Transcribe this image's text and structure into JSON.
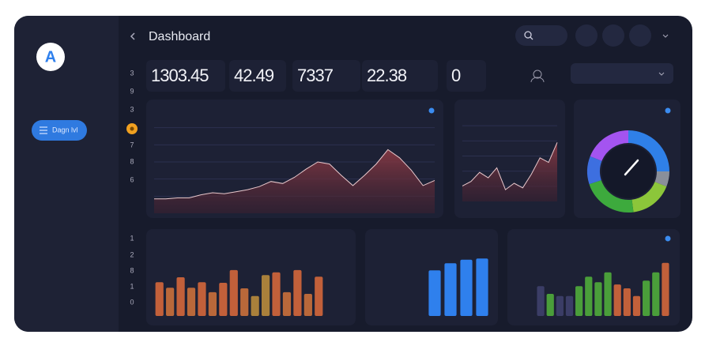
{
  "sidebar": {
    "logo": "A",
    "button": "Dagn lvl"
  },
  "header": {
    "title": "Dashboard"
  },
  "stats": [
    "1303.45",
    "42.49",
    "7337",
    "22.38",
    "0"
  ],
  "side_numbers_top": [
    "3",
    "9",
    "3",
    "7",
    "8",
    "6"
  ],
  "side_numbers_bottom": [
    "1",
    "2",
    "8",
    "1",
    "0"
  ],
  "chart_data": [
    {
      "type": "area",
      "color": "#8a3a44",
      "ylim": [
        0,
        100
      ],
      "grid": true,
      "values": [
        14,
        14,
        15,
        15,
        18,
        20,
        19,
        21,
        23,
        26,
        31,
        29,
        35,
        43,
        50,
        48,
        37,
        27,
        37,
        48,
        62,
        54,
        42,
        27,
        32
      ]
    },
    {
      "type": "area",
      "color": "#8a3a44",
      "ylim": [
        0,
        100
      ],
      "grid": true,
      "values": [
        17,
        22,
        32,
        26,
        37,
        13,
        20,
        15,
        30,
        48,
        43,
        65
      ]
    },
    {
      "type": "pie",
      "values": [
        25,
        6,
        17,
        22,
        11,
        19
      ],
      "colors": [
        "#2f80e8",
        "#8a8f9a",
        "#8cc63a",
        "#3daa3d",
        "#3d6fe0",
        "#a454f0"
      ]
    },
    {
      "type": "bar",
      "ylim": [
        0,
        100
      ],
      "values": [
        61,
        51,
        70,
        51,
        61,
        43,
        60,
        83,
        50,
        36,
        74,
        79,
        43,
        83,
        40,
        71
      ],
      "colors": [
        "#c2603a",
        "#b9683a",
        "#c2603a",
        "#b9683a",
        "#c2603a",
        "#b9683a",
        "#c2603a",
        "#c2603a",
        "#b9683a",
        "#a9803b",
        "#a9803b",
        "#c2603a",
        "#b9683a",
        "#c2603a",
        "#b9683a",
        "#c2603a"
      ]
    },
    {
      "type": "bar",
      "ylim": [
        0,
        100
      ],
      "values": [
        77,
        89,
        95,
        97
      ],
      "colors": [
        "#2f80ed",
        "#2f80ed",
        "#2f80ed",
        "#2f80ed"
      ]
    },
    {
      "type": "bar",
      "ylim": [
        0,
        100
      ],
      "values": [
        54,
        40,
        36,
        36,
        54,
        71,
        61,
        79,
        57,
        50,
        36,
        64,
        79,
        96
      ],
      "colors": [
        "#3b3d66",
        "#4a9e3a",
        "#3b3d66",
        "#3b3d66",
        "#4a9e3a",
        "#4a9e3a",
        "#4a9e3a",
        "#4a9e3a",
        "#c2603a",
        "#c2603a",
        "#c2603a",
        "#4a9e3a",
        "#4a9e3a",
        "#c2603a"
      ]
    }
  ]
}
